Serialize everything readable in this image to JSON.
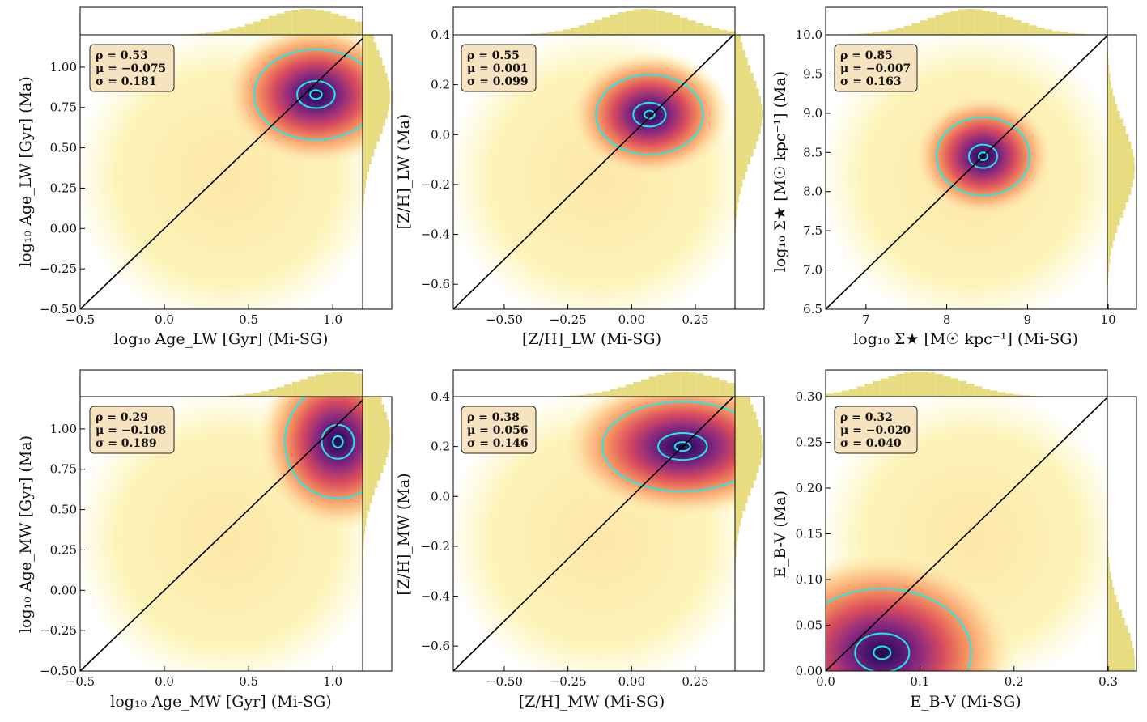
{
  "colors": {
    "hist": "#e8dc80",
    "contour": "#19ecec",
    "one_to_one": "#000000",
    "stat_box_fill": "#f6e3c0",
    "density_low": "#fdf7bf",
    "density_mid": "#f7825f",
    "density_high": "#2c115f"
  },
  "chart_data": [
    {
      "type": "scatter",
      "panel": "age-lw",
      "xlabel": "log₁₀ Age_LW [Gyr] (Mi-SG)",
      "ylabel": "log₁₀ Age_LW [Gyr] (Ma)",
      "xlim": [
        -0.5,
        1.35
      ],
      "ylim": [
        -0.5,
        1.2
      ],
      "xticks": [
        -0.5,
        0.0,
        0.5,
        1.0
      ],
      "yticks": [
        -0.5,
        -0.25,
        0.0,
        0.25,
        0.5,
        0.75,
        1.0
      ],
      "xtick_labels": [
        "−0.5",
        "0.0",
        "0.5",
        "1.0"
      ],
      "ytick_labels": [
        "−0.50",
        "−0.25",
        "0.00",
        "0.25",
        "0.50",
        "0.75",
        "1.00"
      ],
      "one_to_one": true,
      "stats": {
        "rho": "ρ = 0.53",
        "mu": "μ = −0.075",
        "sigma": "σ = 0.181"
      },
      "density_peak": [
        0.9,
        0.83
      ],
      "density_spread": [
        0.35,
        0.28
      ],
      "hist_x_peak": 0.85,
      "hist_y_peak": 0.82
    },
    {
      "type": "scatter",
      "panel": "zh-lw",
      "xlabel": "[Z/H]_LW (Mi-SG)",
      "ylabel": "[Z/H]_LW (Ma)",
      "xlim": [
        -0.7,
        0.52
      ],
      "ylim": [
        -0.7,
        0.4
      ],
      "xticks": [
        -0.5,
        -0.25,
        0.0,
        0.25
      ],
      "yticks": [
        -0.6,
        -0.4,
        -0.2,
        0.0,
        0.2,
        0.4
      ],
      "xtick_labels": [
        "−0.50",
        "−0.25",
        "0.00",
        "0.25"
      ],
      "ytick_labels": [
        "−0.6",
        "−0.4",
        "−0.2",
        "0.0",
        "0.2",
        "0.4"
      ],
      "one_to_one": true,
      "stats": {
        "rho": "ρ = 0.55",
        "mu": "μ = 0.001",
        "sigma": "σ = 0.099"
      },
      "density_peak": [
        0.07,
        0.08
      ],
      "density_spread": [
        0.2,
        0.16
      ],
      "hist_x_peak": 0.05,
      "hist_y_peak": 0.08
    },
    {
      "type": "scatter",
      "panel": "sigma-star",
      "xlabel": "log₁₀ Σ★ [M☉ kpc⁻¹] (Mi-SG)",
      "ylabel": "log₁₀ Σ★ [M☉ kpc⁻¹] (Ma)",
      "xlim": [
        6.5,
        10.35
      ],
      "ylim": [
        6.5,
        10.0
      ],
      "xticks": [
        7,
        8,
        9,
        10
      ],
      "yticks": [
        6.5,
        7.0,
        7.5,
        8.0,
        8.5,
        9.0,
        9.5,
        10.0
      ],
      "xtick_labels": [
        "7",
        "8",
        "9",
        "10"
      ],
      "ytick_labels": [
        "6.5",
        "7.0",
        "7.5",
        "8.0",
        "8.5",
        "9.0",
        "9.5",
        "10.0"
      ],
      "one_to_one": true,
      "stats": {
        "rho": "ρ = 0.85",
        "mu": "μ = −0.007",
        "sigma": "σ = 0.163"
      },
      "density_peak": [
        8.45,
        8.45
      ],
      "density_spread": [
        0.55,
        0.5
      ],
      "hist_x_peak": 8.3,
      "hist_y_peak": 8.3
    },
    {
      "type": "scatter",
      "panel": "age-mw",
      "xlabel": "log₁₀ Age_MW [Gyr] (Mi-SG)",
      "ylabel": "log₁₀ Age_MW [Gyr] (Ma)",
      "xlim": [
        -0.5,
        1.35
      ],
      "ylim": [
        -0.5,
        1.2
      ],
      "xticks": [
        -0.5,
        0.0,
        0.5,
        1.0
      ],
      "yticks": [
        -0.5,
        -0.25,
        0.0,
        0.25,
        0.5,
        0.75,
        1.0
      ],
      "xtick_labels": [
        "−0.5",
        "0.0",
        "0.5",
        "1.0"
      ],
      "ytick_labels": [
        "−0.50",
        "−0.25",
        "0.00",
        "0.25",
        "0.50",
        "0.75",
        "1.00"
      ],
      "one_to_one": true,
      "stats": {
        "rho": "ρ = 0.29",
        "mu": "μ = −0.108",
        "sigma": "σ = 0.189"
      },
      "density_peak": [
        1.03,
        0.92
      ],
      "density_spread": [
        0.3,
        0.35
      ],
      "hist_x_peak": 1.05,
      "hist_y_peak": 0.95
    },
    {
      "type": "scatter",
      "panel": "zh-mw",
      "xlabel": "[Z/H]_MW (Mi-SG)",
      "ylabel": "[Z/H]_MW (Ma)",
      "xlim": [
        -0.7,
        0.52
      ],
      "ylim": [
        -0.7,
        0.4
      ],
      "xticks": [
        -0.5,
        -0.25,
        0.0,
        0.25
      ],
      "yticks": [
        -0.6,
        -0.4,
        -0.2,
        0.0,
        0.2,
        0.4
      ],
      "xtick_labels": [
        "−0.50",
        "−0.25",
        "0.00",
        "0.25"
      ],
      "ytick_labels": [
        "−0.6",
        "−0.4",
        "−0.2",
        "0.0",
        "0.2",
        "0.4"
      ],
      "one_to_one": true,
      "stats": {
        "rho": "ρ = 0.38",
        "mu": "μ = 0.056",
        "sigma": "σ = 0.146"
      },
      "density_peak": [
        0.2,
        0.2
      ],
      "density_spread": [
        0.3,
        0.18
      ],
      "hist_x_peak": 0.2,
      "hist_y_peak": 0.2
    },
    {
      "type": "scatter",
      "panel": "ebv",
      "xlabel": "E_B-V (Mi-SG)",
      "ylabel": "E_B-V (Ma)",
      "xlim": [
        0.0,
        0.33
      ],
      "ylim": [
        0.0,
        0.3
      ],
      "xticks": [
        0.0,
        0.1,
        0.2,
        0.3
      ],
      "yticks": [
        0.0,
        0.05,
        0.1,
        0.15,
        0.2,
        0.25,
        0.3
      ],
      "xtick_labels": [
        "0.0",
        "0.1",
        "0.2",
        "0.3"
      ],
      "ytick_labels": [
        "0.00",
        "0.05",
        "0.10",
        "0.15",
        "0.20",
        "0.25",
        "0.30"
      ],
      "one_to_one": true,
      "stats": {
        "rho": "ρ = 0.32",
        "mu": "μ = −0.020",
        "sigma": "σ = 0.040"
      },
      "density_peak": [
        0.06,
        0.02
      ],
      "density_spread": [
        0.09,
        0.07
      ],
      "hist_x_peak": 0.1,
      "hist_y_peak": 0.01
    }
  ]
}
